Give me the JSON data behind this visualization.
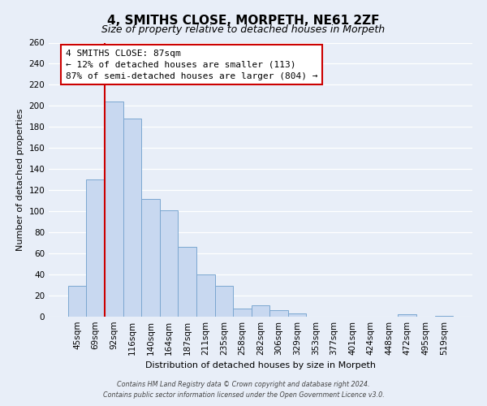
{
  "title": "4, SMITHS CLOSE, MORPETH, NE61 2ZF",
  "subtitle": "Size of property relative to detached houses in Morpeth",
  "xlabel": "Distribution of detached houses by size in Morpeth",
  "ylabel": "Number of detached properties",
  "bar_labels": [
    "45sqm",
    "69sqm",
    "92sqm",
    "116sqm",
    "140sqm",
    "164sqm",
    "187sqm",
    "211sqm",
    "235sqm",
    "258sqm",
    "282sqm",
    "306sqm",
    "329sqm",
    "353sqm",
    "377sqm",
    "401sqm",
    "424sqm",
    "448sqm",
    "472sqm",
    "495sqm",
    "519sqm"
  ],
  "bar_values": [
    29,
    130,
    204,
    188,
    112,
    101,
    66,
    40,
    29,
    8,
    11,
    6,
    3,
    0,
    0,
    0,
    0,
    0,
    2,
    0,
    1
  ],
  "bar_color": "#c8d8f0",
  "bar_edge_color": "#7ba7d0",
  "vline_color": "#cc0000",
  "ylim": [
    0,
    260
  ],
  "yticks": [
    0,
    20,
    40,
    60,
    80,
    100,
    120,
    140,
    160,
    180,
    200,
    220,
    240,
    260
  ],
  "annotation_title": "4 SMITHS CLOSE: 87sqm",
  "annotation_line1": "← 12% of detached houses are smaller (113)",
  "annotation_line2": "87% of semi-detached houses are larger (804) →",
  "footer1": "Contains HM Land Registry data © Crown copyright and database right 2024.",
  "footer2": "Contains public sector information licensed under the Open Government Licence v3.0.",
  "bg_color": "#e8eef8",
  "plot_bg_color": "#e8eef8",
  "grid_color": "#ffffff",
  "title_fontsize": 11,
  "subtitle_fontsize": 9,
  "axis_label_fontsize": 8,
  "tick_fontsize": 7.5,
  "annotation_fontsize": 8,
  "footer_fontsize": 5.8,
  "vline_x_index": 2
}
